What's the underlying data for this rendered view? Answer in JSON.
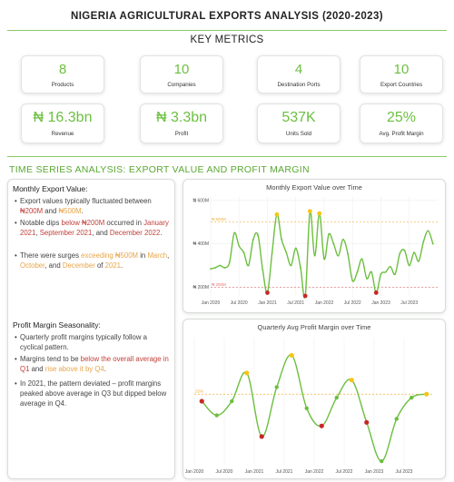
{
  "page_title": "NIGERIA AGRICULTURAL EXPORTS ANALYSIS (2020-2023)",
  "key_metrics_title": "KEY METRICS",
  "metrics": [
    {
      "value": "8",
      "label": "Products"
    },
    {
      "value": "10",
      "label": "Companies"
    },
    {
      "value": "4",
      "label": "Destination Ports"
    },
    {
      "value": "10",
      "label": "Export Countries"
    },
    {
      "value": "₦ 16.3bn",
      "label": "Revenue"
    },
    {
      "value": "₦ 3.3bn",
      "label": "Profit"
    },
    {
      "value": "537K",
      "label": "Units Sold"
    },
    {
      "value": "25%",
      "label": "Avg. Profit Margin"
    }
  ],
  "section_title": "TIME SERIES ANALYSIS: EXPORT VALUE AND PROFIT MARGIN",
  "export_panel": {
    "heading": "Monthly Export Value:",
    "b1": [
      {
        "t": "Export values typically fluctuated between ",
        "c": ""
      },
      {
        "t": "₦200M",
        "c": "red"
      },
      {
        "t": " and ",
        "c": ""
      },
      {
        "t": "₦500M",
        "c": "org"
      },
      {
        "t": ".",
        "c": ""
      }
    ],
    "b2": [
      {
        "t": "Notable dips ",
        "c": ""
      },
      {
        "t": "below ₦200M",
        "c": "red"
      },
      {
        "t": " occurred in ",
        "c": ""
      },
      {
        "t": "January 2021",
        "c": "red"
      },
      {
        "t": ", ",
        "c": ""
      },
      {
        "t": "September 2021",
        "c": "red"
      },
      {
        "t": ", and ",
        "c": ""
      },
      {
        "t": "December 2022",
        "c": "red"
      },
      {
        "t": ".",
        "c": ""
      }
    ],
    "b3": [
      {
        "t": "There were surges ",
        "c": ""
      },
      {
        "t": "exceeding ₦500M",
        "c": "org"
      },
      {
        "t": " in ",
        "c": ""
      },
      {
        "t": "March",
        "c": "org"
      },
      {
        "t": ", ",
        "c": ""
      },
      {
        "t": "October",
        "c": "org"
      },
      {
        "t": ", and ",
        "c": ""
      },
      {
        "t": "December",
        "c": "org"
      },
      {
        "t": " of ",
        "c": ""
      },
      {
        "t": "2021",
        "c": "org"
      },
      {
        "t": ".",
        "c": ""
      }
    ]
  },
  "margin_panel": {
    "heading": "Profit Margin Seasonality:",
    "b1": [
      {
        "t": "Quarterly profit margins typically follow a cyclical pattern.",
        "c": ""
      }
    ],
    "b2": [
      {
        "t": "Margins tend to be ",
        "c": ""
      },
      {
        "t": "below the overall average in Q1",
        "c": "red"
      },
      {
        "t": " and ",
        "c": ""
      },
      {
        "t": "rise above it by Q4",
        "c": "org"
      },
      {
        "t": ".",
        "c": ""
      }
    ],
    "b3": [
      {
        "t": "In 2021, the pattern deviated – profit margins peaked above average in Q3 but dipped below average in Q4.",
        "c": ""
      }
    ]
  },
  "colors": {
    "accent": "#6cbf3f",
    "line": "#6cbf3f",
    "high": "#f5c518",
    "low": "#c62828",
    "avg": "#f0b040",
    "floor": "#e57373"
  },
  "chart_data": [
    {
      "type": "line",
      "title": "Monthly Export Value over Time",
      "xlabel": "",
      "ylabel": "",
      "y_ticks": [
        "₦ 200M",
        "₦ 400M",
        "₦ 600M"
      ],
      "y_tick_values": [
        200,
        400,
        600
      ],
      "x_ticks": [
        "Jan 2020",
        "Jul 2020",
        "Jan 2021",
        "Jul 2021",
        "Jan 2022",
        "Jul 2022",
        "Jan 2023",
        "Jul 2023"
      ],
      "ref_lines": [
        {
          "label": "₦ 500M",
          "value": 500
        },
        {
          "label": "₦ 200M",
          "value": 200
        }
      ],
      "ylim": [
        160,
        620
      ],
      "x": [
        "2020-01",
        "2020-02",
        "2020-03",
        "2020-04",
        "2020-05",
        "2020-06",
        "2020-07",
        "2020-08",
        "2020-09",
        "2020-10",
        "2020-11",
        "2020-12",
        "2021-01",
        "2021-02",
        "2021-03",
        "2021-04",
        "2021-05",
        "2021-06",
        "2021-07",
        "2021-08",
        "2021-09",
        "2021-10",
        "2021-11",
        "2021-12",
        "2022-01",
        "2022-02",
        "2022-03",
        "2022-04",
        "2022-05",
        "2022-06",
        "2022-07",
        "2022-08",
        "2022-09",
        "2022-10",
        "2022-11",
        "2022-12",
        "2023-01",
        "2023-02",
        "2023-03",
        "2023-04",
        "2023-05",
        "2023-06",
        "2023-07",
        "2023-08",
        "2023-09",
        "2023-10",
        "2023-11",
        "2023-12"
      ],
      "values": [
        285,
        290,
        300,
        290,
        315,
        450,
        390,
        360,
        300,
        420,
        440,
        280,
        175,
        360,
        535,
        420,
        360,
        300,
        380,
        290,
        160,
        550,
        345,
        540,
        330,
        445,
        400,
        345,
        420,
        355,
        230,
        270,
        330,
        240,
        270,
        175,
        260,
        270,
        295,
        260,
        355,
        370,
        300,
        360,
        320,
        410,
        460,
        400
      ],
      "highlight_high": [
        14,
        21,
        23
      ],
      "highlight_low": [
        12,
        20,
        35
      ]
    },
    {
      "type": "line",
      "title": "Quarterly Avg Profit Margin over Time",
      "xlabel": "",
      "ylabel": "",
      "x_ticks": [
        "Jan 2020",
        "Jul 2020",
        "Jan 2021",
        "Jul 2021",
        "Jan 2022",
        "Jul 2022",
        "Jan 2023",
        "Jul 2023"
      ],
      "ref_lines": [
        {
          "label": "25%",
          "value": 25
        }
      ],
      "ylim": [
        15,
        33
      ],
      "x": [
        "2020-Q1",
        "2020-Q2",
        "2020-Q3",
        "2020-Q4",
        "2021-Q1",
        "2021-Q2",
        "2021-Q3",
        "2021-Q4",
        "2022-Q1",
        "2022-Q2",
        "2022-Q3",
        "2022-Q4",
        "2023-Q1",
        "2023-Q2",
        "2023-Q3",
        "2023-Q4"
      ],
      "values": [
        24.0,
        22.0,
        24.0,
        28.0,
        19.0,
        26.0,
        30.5,
        23.0,
        20.5,
        24.5,
        27.0,
        21.0,
        15.5,
        21.5,
        24.5,
        25.0
      ],
      "highlight_high": [
        3,
        6,
        10,
        15
      ],
      "highlight_low": [
        0,
        4,
        8,
        11
      ]
    }
  ]
}
